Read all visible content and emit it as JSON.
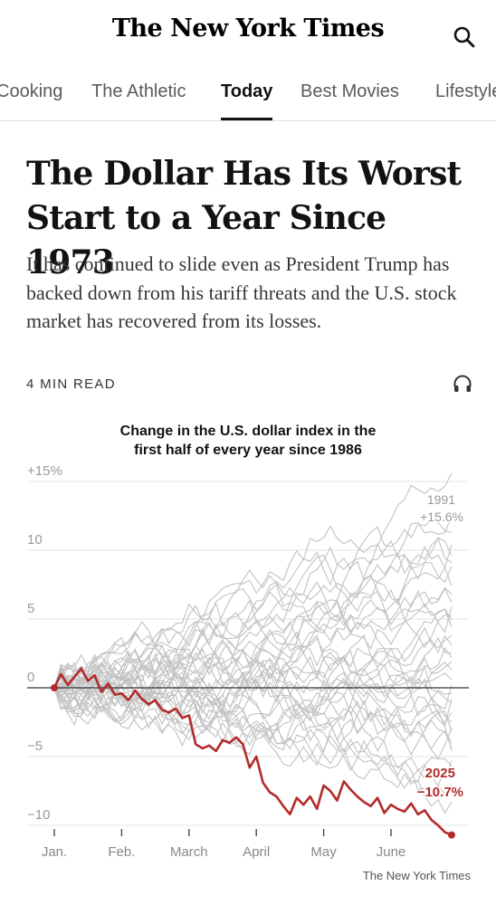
{
  "header": {
    "logo": "The New York Times",
    "search_icon": "search-icon"
  },
  "nav": {
    "items": [
      {
        "label": "Cooking",
        "active": false
      },
      {
        "label": "The Athletic",
        "active": false
      },
      {
        "label": "Today",
        "active": true
      },
      {
        "label": "Best Movies",
        "active": false
      },
      {
        "label": "Lifestyle",
        "active": false
      }
    ]
  },
  "article": {
    "headline_line1": "The Dollar Has Its Worst",
    "headline_line2": "Start to a Year Since 1973",
    "summary": "It has continued to slide even as President Trump has backed down from his tariff threats and the U.S. stock market has recovered from its losses.",
    "read_time": "4 MIN READ",
    "audio_icon": "headphones-icon"
  },
  "chart": {
    "title_line1": "Change in the U.S. dollar index in the",
    "title_line2": "first half of every year since 1986",
    "credit": "The New York Times",
    "colors": {
      "highlight": "#b22b2b",
      "background_lines": "#c2c2c2",
      "zero_line": "#333333",
      "grid": "#e3e3e3"
    }
  },
  "chart_data": {
    "type": "line",
    "title": "Change in the U.S. dollar index in the first half of every year since 1986",
    "xlabel": "",
    "ylabel": "",
    "x_ticks": [
      "Jan.",
      "Feb.",
      "March",
      "April",
      "May",
      "June"
    ],
    "y_ticks": [
      {
        "value": 15,
        "label": "+15%"
      },
      {
        "value": 10,
        "label": "10"
      },
      {
        "value": 5,
        "label": "5"
      },
      {
        "value": 0,
        "label": "0"
      },
      {
        "value": -5,
        "label": "−5"
      },
      {
        "value": -10,
        "label": "−10"
      }
    ],
    "ylim": [
      -10.5,
      16
    ],
    "grid": true,
    "highlight_series": {
      "year": "2025",
      "final_label": "−10.7%",
      "x_months": [
        0.0,
        0.1,
        0.2,
        0.3,
        0.4,
        0.5,
        0.6,
        0.7,
        0.8,
        0.9,
        1.0,
        1.1,
        1.2,
        1.3,
        1.4,
        1.5,
        1.6,
        1.7,
        1.8,
        1.9,
        2.0,
        2.1,
        2.2,
        2.3,
        2.4,
        2.5,
        2.6,
        2.7,
        2.8,
        2.9,
        3.0,
        3.1,
        3.2,
        3.3,
        3.4,
        3.5,
        3.6,
        3.7,
        3.8,
        3.9,
        4.0,
        4.1,
        4.2,
        4.3,
        4.4,
        4.5,
        4.6,
        4.7,
        4.8,
        4.9,
        5.0,
        5.1,
        5.2,
        5.3,
        5.4,
        5.5,
        5.6,
        5.7,
        5.8,
        5.9
      ],
      "values": [
        0,
        1.0,
        0.2,
        0.8,
        1.4,
        0.5,
        0.9,
        -0.3,
        0.3,
        -0.5,
        -0.4,
        -0.9,
        -0.2,
        -0.8,
        -1.2,
        -0.9,
        -1.6,
        -1.8,
        -1.5,
        -2.2,
        -2.0,
        -4.1,
        -4.4,
        -4.2,
        -4.6,
        -3.8,
        -4.0,
        -3.6,
        -4.1,
        -5.8,
        -5.0,
        -6.9,
        -7.6,
        -7.9,
        -8.6,
        -9.2,
        -8.0,
        -8.5,
        -7.9,
        -8.8,
        -7.1,
        -7.5,
        -8.2,
        -6.8,
        -7.4,
        -7.9,
        -8.3,
        -8.6,
        -8.0,
        -9.1,
        -8.5,
        -8.8,
        -9.0,
        -8.4,
        -9.2,
        -8.9,
        -9.6,
        -10.0,
        -10.5,
        -10.7
      ]
    },
    "peak_series": {
      "year": "1991",
      "final_label": "+15.6%",
      "final_value": 15.6
    },
    "other_series_final_values": [
      12.5,
      10.4,
      9.6,
      8.8,
      7.4,
      6.8,
      5.9,
      5.2,
      4.4,
      3.8,
      3.1,
      2.5,
      1.9,
      1.3,
      0.6,
      0.2,
      -0.4,
      -1.1,
      -1.8,
      -2.5,
      -3.2,
      -4.0,
      -4.6,
      -5.3,
      -6.0,
      -7.0,
      -8.3,
      11.3,
      9.1,
      6.2,
      4.9,
      2.2,
      -0.8,
      -2.9,
      -4.4,
      -5.7
    ]
  }
}
